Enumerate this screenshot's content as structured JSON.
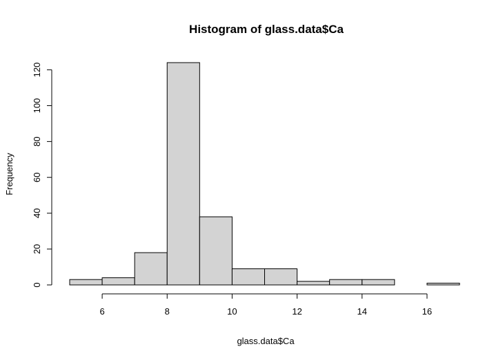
{
  "chart_data": {
    "type": "bar",
    "title": "Histogram of glass.data$Ca",
    "xlabel": "glass.data$Ca",
    "ylabel": "Frequency",
    "bins": [
      {
        "from": 5,
        "to": 6,
        "value": 3
      },
      {
        "from": 6,
        "to": 7,
        "value": 4
      },
      {
        "from": 7,
        "to": 8,
        "value": 18
      },
      {
        "from": 8,
        "to": 9,
        "value": 124
      },
      {
        "from": 9,
        "to": 10,
        "value": 38
      },
      {
        "from": 10,
        "to": 11,
        "value": 9
      },
      {
        "from": 11,
        "to": 12,
        "value": 9
      },
      {
        "from": 12,
        "to": 13,
        "value": 2
      },
      {
        "from": 13,
        "to": 14,
        "value": 3
      },
      {
        "from": 14,
        "to": 15,
        "value": 3
      },
      {
        "from": 15,
        "to": 16,
        "value": 0
      },
      {
        "from": 16,
        "to": 17,
        "value": 1
      }
    ],
    "xlim": [
      5,
      17
    ],
    "ylim": [
      0,
      124
    ],
    "x_ticks": [
      6,
      8,
      10,
      12,
      14,
      16
    ],
    "x_tick_labels": [
      "6",
      "8",
      "10",
      "12",
      "14",
      "16"
    ],
    "y_ticks": [
      0,
      20,
      40,
      60,
      80,
      100,
      120
    ],
    "y_tick_labels": [
      "0",
      "20",
      "40",
      "60",
      "80",
      "100",
      "120"
    ],
    "grid": false,
    "colors": {
      "bar_fill": "#d3d3d3",
      "bar_stroke": "#000000"
    }
  }
}
